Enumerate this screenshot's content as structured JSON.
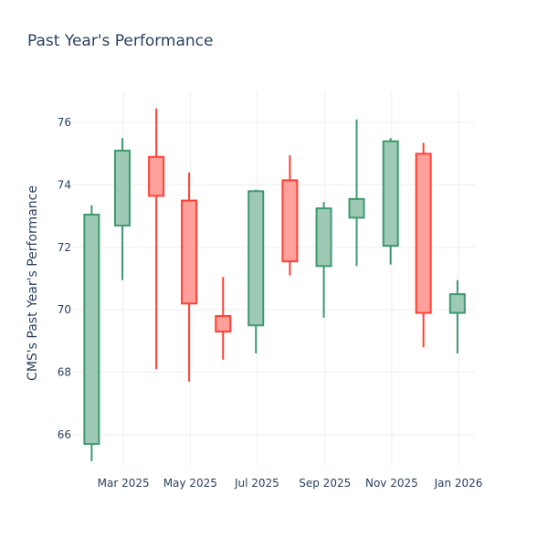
{
  "chart_data": {
    "type": "candlestick",
    "title": "Past Year's Performance",
    "xlabel": "",
    "ylabel": "CMS's Past Year's Performance",
    "ylim": [
      65,
      77
    ],
    "y_ticks": [
      66,
      68,
      70,
      72,
      74,
      76
    ],
    "x_range": [
      "2025-01-14",
      "2026-01-16"
    ],
    "x_ticks": [
      {
        "date": "2025-03-01",
        "label": "Mar 2025"
      },
      {
        "date": "2025-05-01",
        "label": "May 2025"
      },
      {
        "date": "2025-07-01",
        "label": "Jul 2025"
      },
      {
        "date": "2025-09-01",
        "label": "Sep 2025"
      },
      {
        "date": "2025-11-01",
        "label": "Nov 2025"
      },
      {
        "date": "2026-01-01",
        "label": "Jan 2026"
      }
    ],
    "candles": [
      {
        "date": "2025-01-31",
        "open": 65.7,
        "high": 73.35,
        "low": 65.15,
        "close": 73.05
      },
      {
        "date": "2025-02-28",
        "open": 72.7,
        "high": 75.5,
        "low": 70.95,
        "close": 75.1
      },
      {
        "date": "2025-03-31",
        "open": 74.9,
        "high": 76.45,
        "low": 68.1,
        "close": 73.65
      },
      {
        "date": "2025-04-30",
        "open": 73.5,
        "high": 74.4,
        "low": 67.7,
        "close": 70.2
      },
      {
        "date": "2025-05-31",
        "open": 69.8,
        "high": 71.05,
        "low": 68.4,
        "close": 69.3
      },
      {
        "date": "2025-06-30",
        "open": 69.5,
        "high": 73.85,
        "low": 68.6,
        "close": 73.8
      },
      {
        "date": "2025-07-31",
        "open": 74.15,
        "high": 74.95,
        "low": 71.1,
        "close": 71.55
      },
      {
        "date": "2025-08-31",
        "open": 71.4,
        "high": 73.45,
        "low": 69.75,
        "close": 73.25
      },
      {
        "date": "2025-09-30",
        "open": 72.95,
        "high": 76.1,
        "low": 71.4,
        "close": 73.55
      },
      {
        "date": "2025-10-31",
        "open": 72.05,
        "high": 75.5,
        "low": 71.45,
        "close": 75.4
      },
      {
        "date": "2025-11-30",
        "open": 75.0,
        "high": 75.35,
        "low": 68.8,
        "close": 69.9
      },
      {
        "date": "2025-12-31",
        "open": 69.9,
        "high": 70.95,
        "low": 68.6,
        "close": 70.5
      }
    ],
    "colors": {
      "increasing_line": "#3d9970",
      "increasing_fill": "#9ecab5",
      "decreasing_line": "#ff4136",
      "decreasing_fill": "#ffa09b"
    },
    "grid": true,
    "legend": "none"
  }
}
